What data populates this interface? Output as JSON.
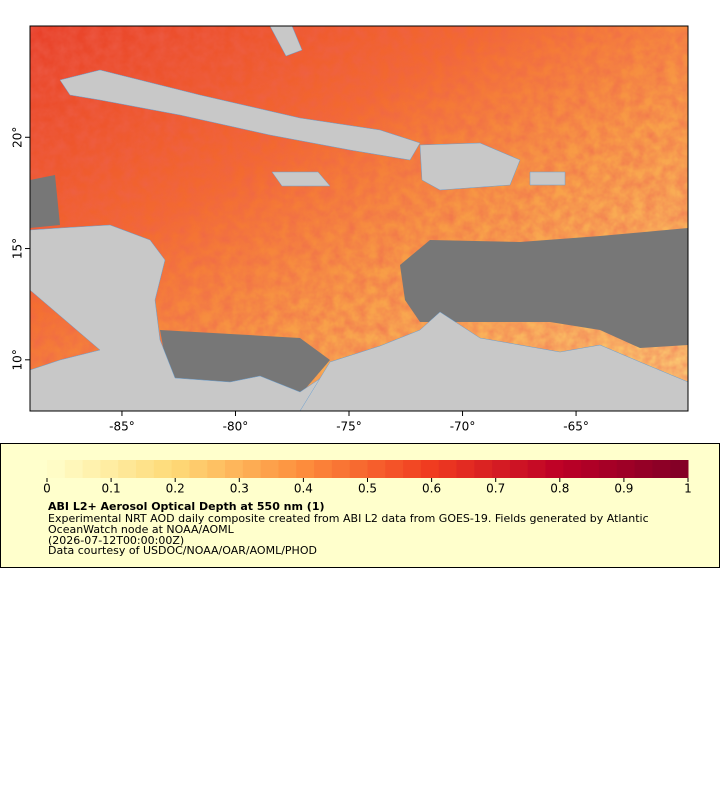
{
  "map": {
    "xlim": [
      -89.05,
      -60.07
    ],
    "ylim": [
      7.7,
      25
    ],
    "xticks": [
      {
        "value": -85,
        "label": "-85°"
      },
      {
        "value": -80,
        "label": "-80°"
      },
      {
        "value": -75,
        "label": "-75°"
      },
      {
        "value": -70,
        "label": "-70°"
      },
      {
        "value": -65,
        "label": "-65°"
      }
    ],
    "yticks": [
      {
        "value": 10,
        "label": "10°"
      },
      {
        "value": 15,
        "label": "15°"
      },
      {
        "value": 20,
        "label": "20°"
      }
    ]
  },
  "colorbar": {
    "range": [
      0,
      1
    ],
    "ticks": [
      0,
      0.1,
      0.2,
      0.3,
      0.4,
      0.5,
      0.6,
      0.7,
      0.8,
      0.9,
      1
    ]
  },
  "legend": {
    "title": "ABI L2+ Aerosol Optical Depth at 550 nm (1)",
    "lines": [
      "Experimental NRT AOD daily composite created from ABI L2 data from GOES-19. Fields generated by Atlantic",
      "OceanWatch node at NOAA/AOML",
      "(2026-07-12T00:00:00Z)",
      "Data courtesy of USDOC/NOAA/OAR/AOML/PHOD"
    ]
  }
}
